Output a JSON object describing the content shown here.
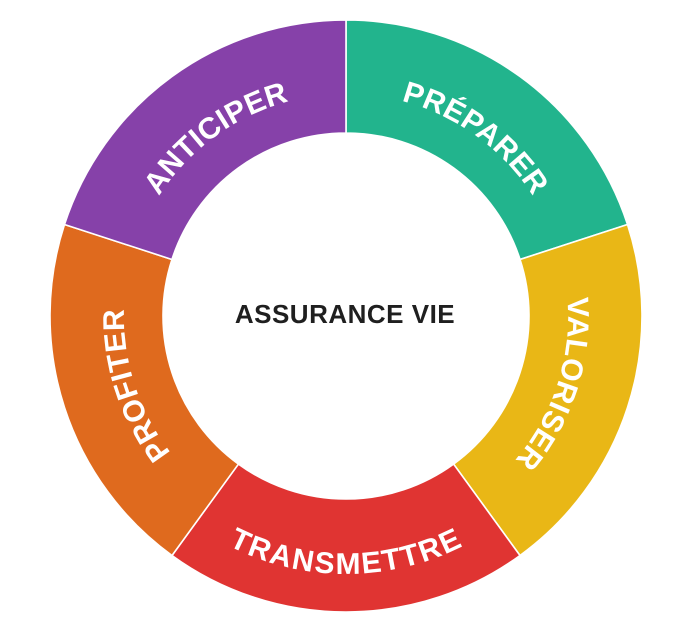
{
  "center": {
    "label": "ASSURANCE VIE"
  },
  "segments": [
    {
      "label": "PRÉPARER",
      "color": "#22b48d"
    },
    {
      "label": "VALORISER",
      "color": "#e9b716"
    },
    {
      "label": "TRANSMETTRE",
      "color": "#e03432"
    },
    {
      "label": "PROFITER",
      "color": "#df6a1e"
    },
    {
      "label": "ANTICIPER",
      "color": "#8641a9"
    }
  ]
}
